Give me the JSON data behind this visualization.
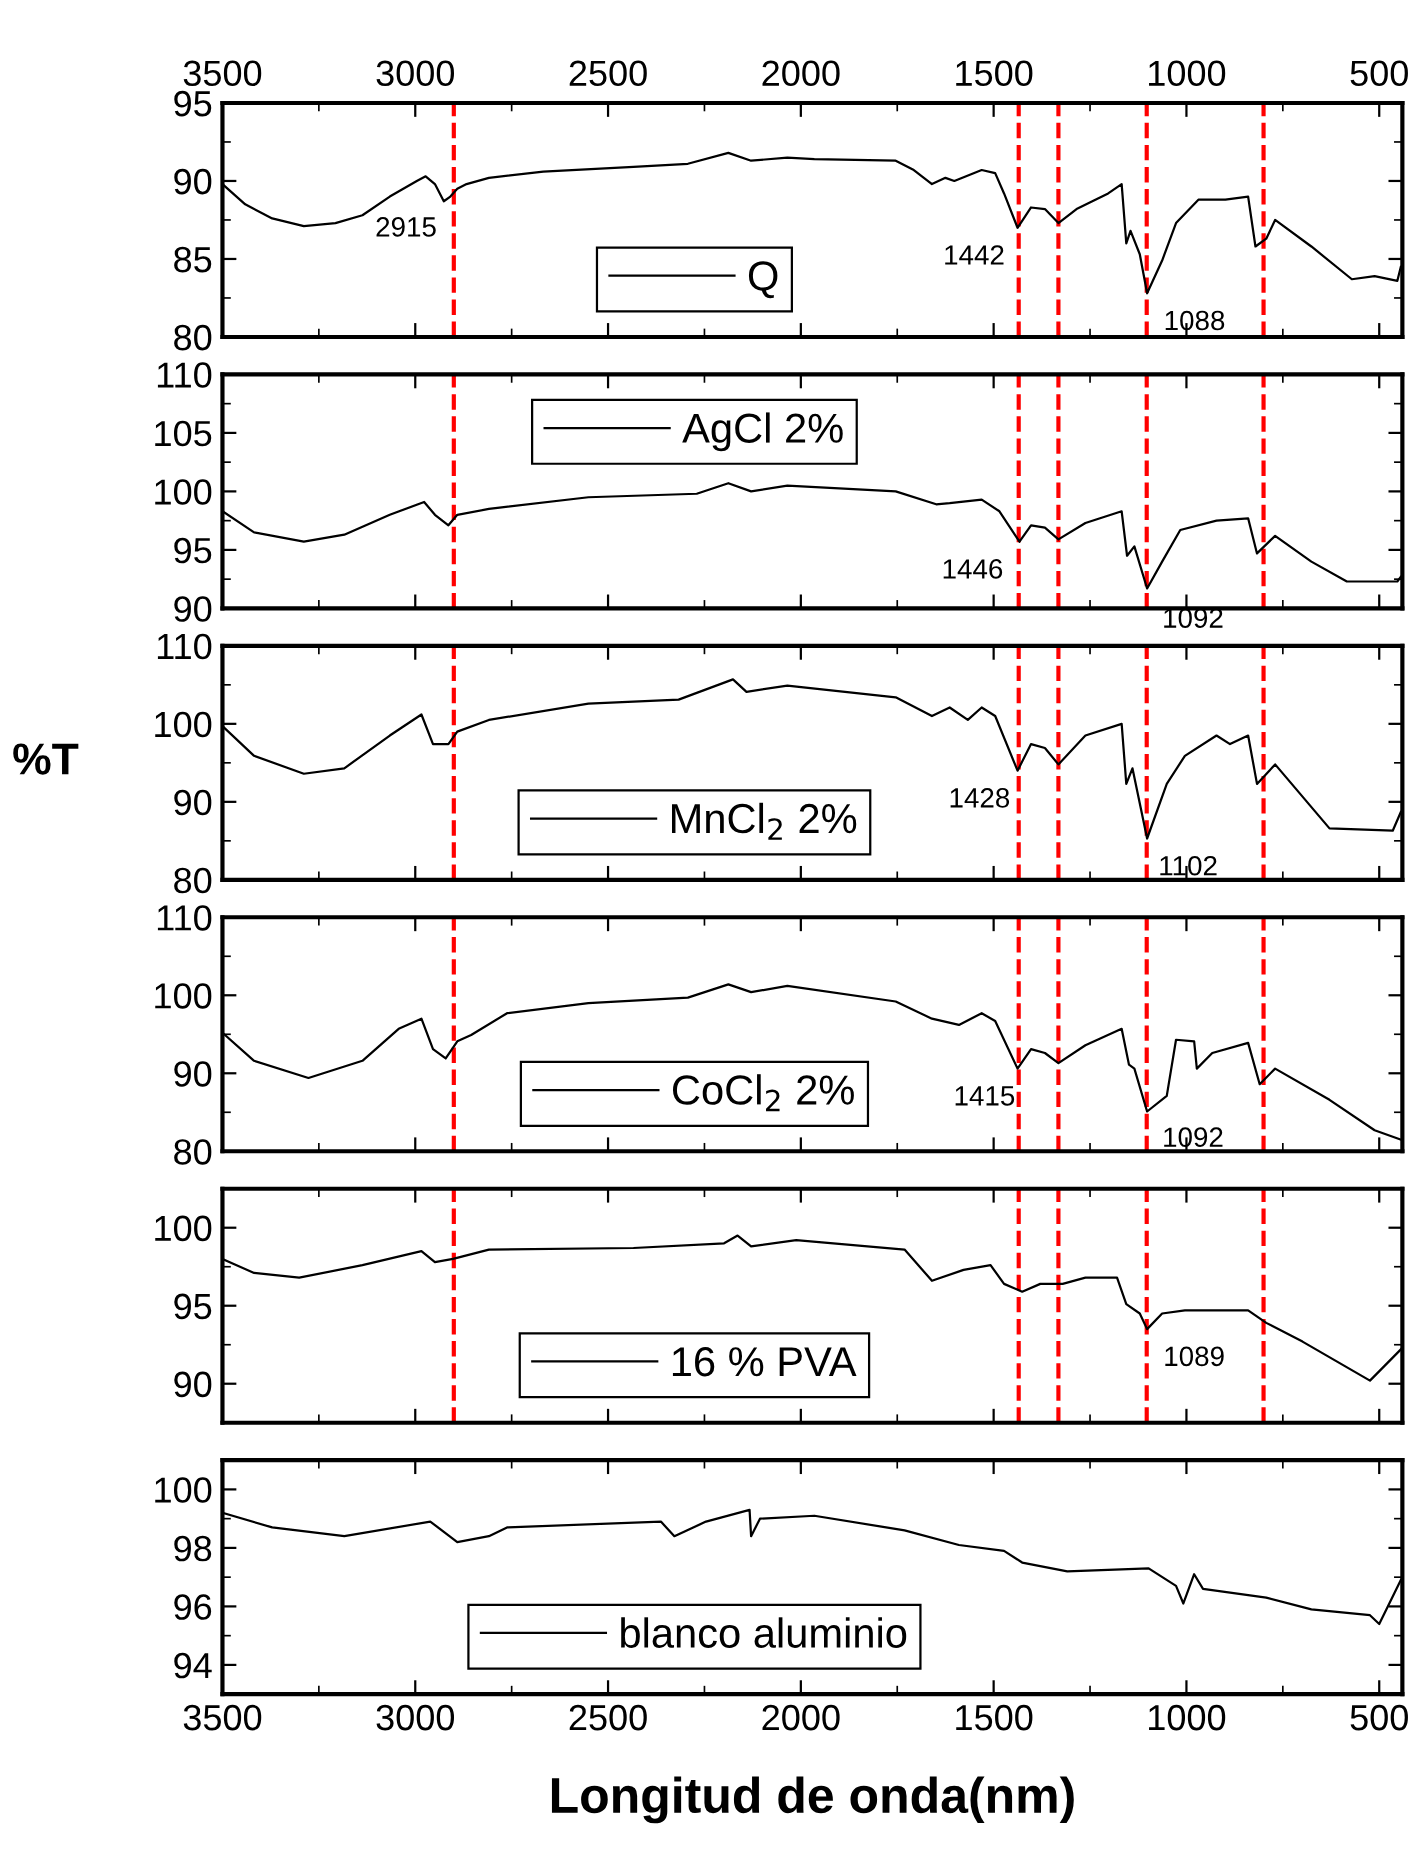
{
  "chart_data": [
    {
      "type": "line",
      "xlim": [
        3500,
        440
      ],
      "xticks": [
        3500,
        3000,
        2500,
        2000,
        1500,
        1000,
        500
      ],
      "x2lim": [
        3500,
        440
      ],
      "x2ticks": [
        3500,
        3000,
        2500,
        2000,
        1500,
        1000,
        500
      ],
      "ylim": [
        80,
        95
      ],
      "yticks": [
        80,
        85,
        90,
        95
      ],
      "tick_labels": "y",
      "legend": "bottom",
      "line_style": "solid",
      "series": [
        {
          "name": "Q",
          "color": "#000000",
          "x": [
            3500,
            3441,
            3371,
            3289,
            3207,
            3137,
            3066,
            2996,
            2973,
            2949,
            2926,
            2909,
            2891,
            2867,
            2809,
            2668,
            2434,
            2293,
            2188,
            2129,
            2035,
            1965,
            1754,
            1707,
            1660,
            1625,
            1602,
            1531,
            1496,
            1473,
            1438,
            1403,
            1367,
            1332,
            1285,
            1203,
            1168,
            1156,
            1145,
            1121,
            1102,
            1063,
            1027,
            969,
            899,
            840,
            821,
            793,
            770,
            676,
            571,
            512,
            453,
            444
          ],
          "values": [
            89.8,
            88.5,
            87.6,
            87.1,
            87.3,
            87.8,
            89.0,
            90.0,
            90.3,
            89.8,
            88.7,
            89.0,
            89.5,
            89.8,
            90.2,
            90.6,
            90.9,
            91.1,
            91.8,
            91.3,
            91.5,
            91.4,
            91.3,
            90.7,
            89.8,
            90.2,
            90.0,
            90.7,
            90.5,
            89.2,
            87.0,
            88.3,
            88.2,
            87.3,
            88.2,
            89.2,
            89.8,
            86.0,
            86.8,
            85.3,
            82.8,
            84.9,
            87.3,
            88.8,
            88.8,
            89.0,
            85.8,
            86.3,
            87.5,
            85.8,
            83.7,
            83.9,
            83.6,
            84.5
          ]
        }
      ],
      "ref_lines": [
        {
          "axis": "x",
          "value": 2900,
          "color": "#ff0000",
          "line_style": "dashed"
        },
        {
          "axis": "x",
          "value": 1435,
          "color": "#ff0000",
          "line_style": "dashed"
        },
        {
          "axis": "x",
          "value": 1332,
          "color": "#ff0000",
          "line_style": "dashed"
        },
        {
          "axis": "x",
          "value": 1103,
          "color": "#ff0000",
          "line_style": "dashed"
        },
        {
          "axis": "x",
          "value": 800,
          "color": "#ff0000",
          "line_style": "dashed"
        }
      ],
      "annotations": [
        {
          "text": "2915",
          "x": 2915,
          "y": 88.8
        },
        {
          "text": "1442",
          "x": 1442,
          "y": 87.0
        },
        {
          "text": "1088",
          "x": 1088,
          "y": 82.8
        }
      ]
    },
    {
      "type": "line",
      "xlim": [
        3500,
        440
      ],
      "xticks": [
        3500,
        3000,
        2500,
        2000,
        1500,
        1000,
        500
      ],
      "ylim": [
        90,
        110
      ],
      "yticks": [
        90,
        95,
        100,
        105,
        110
      ],
      "tick_labels": "y",
      "legend": "top",
      "line_style": "solid",
      "series": [
        {
          "name": "AgCl 2%",
          "color": "#000000",
          "x": [
            3500,
            3418,
            3289,
            3184,
            3066,
            2977,
            2949,
            2914,
            2891,
            2809,
            2551,
            2270,
            2188,
            2129,
            2035,
            1754,
            1649,
            1614,
            1531,
            1485,
            1433,
            1403,
            1367,
            1332,
            1262,
            1168,
            1154,
            1135,
            1102,
            1063,
            1016,
            922,
            840,
            817,
            770,
            676,
            584,
            453,
            444
          ],
          "values": [
            98.3,
            96.5,
            95.7,
            96.3,
            98.0,
            99.1,
            98.0,
            97.1,
            98.0,
            98.5,
            99.5,
            99.8,
            100.7,
            100.0,
            100.5,
            100.0,
            98.9,
            99.0,
            99.3,
            98.3,
            95.7,
            97.1,
            96.9,
            95.9,
            97.3,
            98.3,
            94.5,
            95.3,
            91.7,
            94.0,
            96.7,
            97.5,
            97.7,
            94.7,
            96.2,
            94.0,
            92.3,
            92.3,
            92.7
          ]
        }
      ],
      "ref_lines": [
        {
          "axis": "x",
          "value": 2900,
          "color": "#ff0000",
          "line_style": "dashed"
        },
        {
          "axis": "x",
          "value": 1435,
          "color": "#ff0000",
          "line_style": "dashed"
        },
        {
          "axis": "x",
          "value": 1332,
          "color": "#ff0000",
          "line_style": "dashed"
        },
        {
          "axis": "x",
          "value": 1103,
          "color": "#ff0000",
          "line_style": "dashed"
        },
        {
          "axis": "x",
          "value": 800,
          "color": "#ff0000",
          "line_style": "dashed"
        }
      ],
      "annotations": [
        {
          "text": "1446",
          "x": 1446,
          "y": 95.7
        },
        {
          "text": "1092",
          "x": 1092,
          "y": 91.5
        }
      ]
    },
    {
      "type": "line",
      "xlim": [
        3500,
        440
      ],
      "xticks": [
        3500,
        3000,
        2500,
        2000,
        1500,
        1000,
        500
      ],
      "ylim": [
        80,
        110
      ],
      "yticks": [
        80,
        90,
        100,
        110
      ],
      "tick_labels": "y",
      "legend": "bottom",
      "line_style": "solid",
      "ylabel": "%T",
      "series": [
        {
          "name": "MnCl$_{2}$ 2%",
          "color": "#000000",
          "x": [
            3500,
            3418,
            3289,
            3184,
            3066,
            2984,
            2954,
            2914,
            2891,
            2809,
            2551,
            2317,
            2176,
            2141,
            2035,
            1754,
            1660,
            1614,
            1567,
            1531,
            1496,
            1438,
            1403,
            1367,
            1332,
            1262,
            1168,
            1156,
            1140,
            1102,
            1051,
            1004,
            922,
            887,
            840,
            817,
            770,
            629,
            465,
            444
          ],
          "values": [
            99.7,
            95.9,
            93.6,
            94.3,
            98.5,
            101.2,
            97.4,
            97.4,
            99.0,
            100.5,
            102.6,
            103.1,
            105.7,
            104.1,
            104.9,
            103.4,
            101.0,
            102.1,
            100.5,
            102.1,
            101.0,
            94.0,
            97.4,
            96.9,
            94.8,
            98.5,
            100.0,
            92.3,
            94.3,
            85.3,
            92.3,
            95.9,
            98.5,
            97.4,
            98.5,
            92.3,
            94.8,
            86.6,
            86.3,
            88.7
          ]
        }
      ],
      "ref_lines": [
        {
          "axis": "x",
          "value": 2900,
          "color": "#ff0000",
          "line_style": "dashed"
        },
        {
          "axis": "x",
          "value": 1435,
          "color": "#ff0000",
          "line_style": "dashed"
        },
        {
          "axis": "x",
          "value": 1332,
          "color": "#ff0000",
          "line_style": "dashed"
        },
        {
          "axis": "x",
          "value": 1103,
          "color": "#ff0000",
          "line_style": "dashed"
        },
        {
          "axis": "x",
          "value": 800,
          "color": "#ff0000",
          "line_style": "dashed"
        }
      ],
      "annotations": [
        {
          "text": "1428",
          "x": 1428,
          "y": 94.0
        },
        {
          "text": "1102",
          "x": 1102,
          "y": 85.3
        }
      ]
    },
    {
      "type": "line",
      "xlim": [
        3500,
        440
      ],
      "xticks": [
        3500,
        3000,
        2500,
        2000,
        1500,
        1000,
        500
      ],
      "ylim": [
        80,
        110
      ],
      "yticks": [
        80,
        90,
        100,
        110
      ],
      "tick_labels": "y",
      "legend": "bottom",
      "line_style": "solid",
      "series": [
        {
          "name": "CoCl$_{2}$ 2%",
          "color": "#000000",
          "x": [
            3500,
            3418,
            3277,
            3137,
            3043,
            2984,
            2954,
            2921,
            2891,
            2855,
            2762,
            2551,
            2293,
            2188,
            2129,
            2035,
            1754,
            1660,
            1590,
            1531,
            1496,
            1438,
            1403,
            1367,
            1332,
            1262,
            1168,
            1149,
            1135,
            1102,
            1051,
            1027,
            980,
            973,
            933,
            840,
            810,
            770,
            629,
            512,
            444
          ],
          "values": [
            95.2,
            91.6,
            89.4,
            91.6,
            95.7,
            97.0,
            93.1,
            91.9,
            94.1,
            94.9,
            97.7,
            99.0,
            99.7,
            101.4,
            100.4,
            101.2,
            99.2,
            97.0,
            96.2,
            97.7,
            96.7,
            90.6,
            93.1,
            92.6,
            91.3,
            93.6,
            95.7,
            91.1,
            90.6,
            85.1,
            87.1,
            94.3,
            94.1,
            90.6,
            92.6,
            93.9,
            88.6,
            90.6,
            86.6,
            82.7,
            81.5
          ]
        }
      ],
      "ref_lines": [
        {
          "axis": "x",
          "value": 2900,
          "color": "#ff0000",
          "line_style": "dashed"
        },
        {
          "axis": "x",
          "value": 1435,
          "color": "#ff0000",
          "line_style": "dashed"
        },
        {
          "axis": "x",
          "value": 1332,
          "color": "#ff0000",
          "line_style": "dashed"
        },
        {
          "axis": "x",
          "value": 1103,
          "color": "#ff0000",
          "line_style": "dashed"
        },
        {
          "axis": "x",
          "value": 800,
          "color": "#ff0000",
          "line_style": "dashed"
        }
      ],
      "annotations": [
        {
          "text": "1415",
          "x": 1415,
          "y": 90.6
        },
        {
          "text": "1092",
          "x": 1092,
          "y": 85.3
        }
      ]
    },
    {
      "type": "line",
      "xlim": [
        3500,
        440
      ],
      "xticks": [
        3500,
        3000,
        2500,
        2000,
        1500,
        1000,
        500
      ],
      "ylim": [
        87.5,
        102.5
      ],
      "yticks": [
        90,
        95,
        100
      ],
      "tick_labels": "y",
      "legend": "bottom",
      "line_style": "solid",
      "series": [
        {
          "name": "16 % PVA",
          "color": "#000000",
          "x": [
            3500,
            3418,
            3301,
            3137,
            2984,
            2949,
            2902,
            2809,
            2434,
            2199,
            2164,
            2129,
            2012,
            1731,
            1660,
            1578,
            1508,
            1473,
            1426,
            1379,
            1321,
            1262,
            1180,
            1156,
            1121,
            1102,
            1063,
            1004,
            840,
            793,
            699,
            524,
            444
          ],
          "values": [
            98.0,
            97.1,
            96.8,
            97.6,
            98.5,
            97.8,
            98.0,
            98.6,
            98.7,
            99.0,
            99.5,
            98.8,
            99.2,
            98.6,
            96.6,
            97.3,
            97.6,
            96.4,
            95.9,
            96.4,
            96.4,
            96.8,
            96.8,
            95.1,
            94.5,
            93.5,
            94.5,
            94.7,
            94.7,
            93.9,
            92.7,
            90.2,
            92.2
          ]
        }
      ],
      "ref_lines": [
        {
          "axis": "x",
          "value": 2900,
          "color": "#ff0000",
          "line_style": "dashed"
        },
        {
          "axis": "x",
          "value": 1435,
          "color": "#ff0000",
          "line_style": "dashed"
        },
        {
          "axis": "x",
          "value": 1332,
          "color": "#ff0000",
          "line_style": "dashed"
        },
        {
          "axis": "x",
          "value": 1103,
          "color": "#ff0000",
          "line_style": "dashed"
        },
        {
          "axis": "x",
          "value": 800,
          "color": "#ff0000",
          "line_style": "dashed"
        }
      ],
      "annotations": [
        {
          "text": "1089",
          "x": 1089,
          "y": 93.5
        }
      ]
    },
    {
      "type": "line",
      "xlim": [
        3500,
        440
      ],
      "xticks": [
        3500,
        3000,
        2500,
        2000,
        1500,
        1000,
        500
      ],
      "ylim": [
        93,
        101
      ],
      "yticks": [
        94,
        96,
        98,
        100
      ],
      "legend": "bottom",
      "line_style": "solid",
      "xlabel": "Longitud de onda(nm)",
      "series": [
        {
          "name": "blanco aluminio",
          "color": "#000000",
          "x": [
            3500,
            3371,
            3184,
            2961,
            2891,
            2809,
            2762,
            2363,
            2328,
            2246,
            2133,
            2129,
            2106,
            1965,
            1731,
            1590,
            1473,
            1426,
            1309,
            1098,
            1027,
            1008,
            980,
            957,
            793,
            676,
            524,
            500,
            444
          ],
          "values": [
            99.2,
            98.7,
            98.4,
            98.9,
            98.2,
            98.4,
            98.7,
            98.9,
            98.4,
            98.9,
            99.3,
            98.4,
            99.0,
            99.1,
            98.6,
            98.1,
            97.9,
            97.5,
            97.2,
            97.3,
            96.7,
            96.1,
            97.1,
            96.6,
            96.3,
            95.9,
            95.7,
            95.4,
            96.9
          ]
        }
      ]
    }
  ]
}
